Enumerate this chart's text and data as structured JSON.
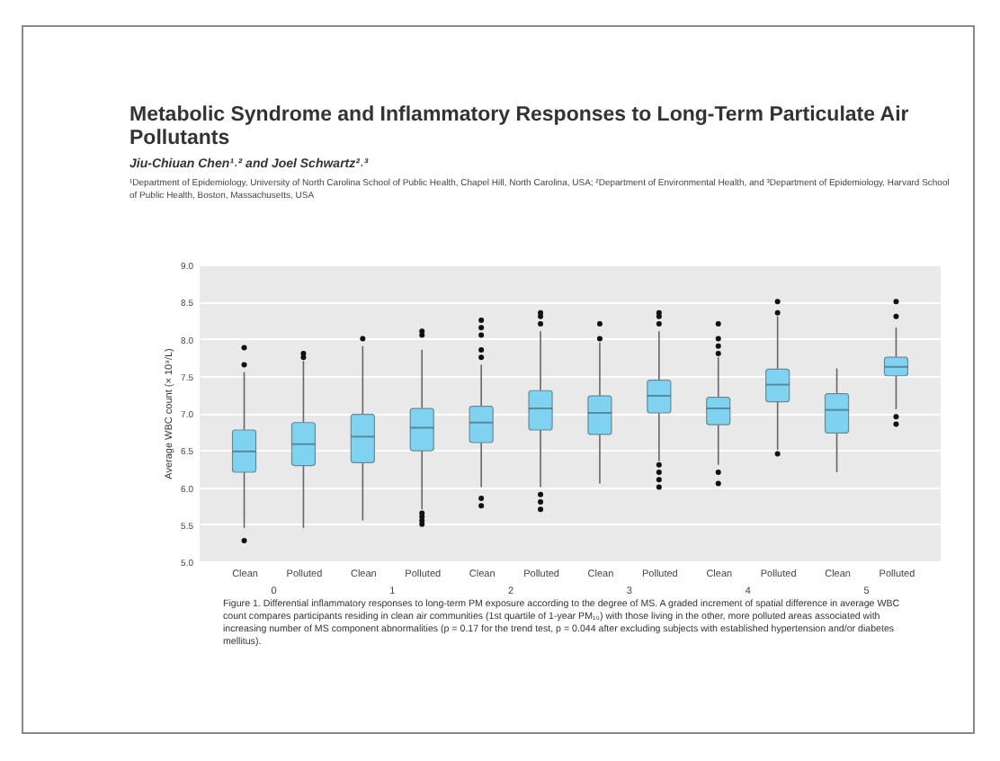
{
  "chart_data": {
    "type": "box",
    "title": "Metabolic Syndrome and Inflammatory Responses to Long-Term Particulate Air Pollutants",
    "subtitle": "Jiu-Chiuan Chen¹˒² and Joel Schwartz²˒³",
    "ylabel": "Average WBC count (× 10⁹/L)",
    "categories": [
      "Clean",
      "Polluted",
      "Clean",
      "Polluted",
      "Clean",
      "Polluted",
      "Clean",
      "Polluted",
      "Clean",
      "Polluted",
      "Clean",
      "Polluted"
    ],
    "boxes": [
      {
        "low": 5.45,
        "q1": 6.2,
        "median": 6.48,
        "q3": 6.77,
        "high": 7.55,
        "outliers": [
          7.65,
          7.88,
          5.28
        ]
      },
      {
        "low": 5.45,
        "q1": 6.29,
        "median": 6.58,
        "q3": 6.87,
        "high": 7.7,
        "outliers": [
          7.75,
          7.8
        ]
      },
      {
        "low": 5.55,
        "q1": 6.33,
        "median": 6.68,
        "q3": 6.98,
        "high": 7.9,
        "outliers": [
          8.0
        ]
      },
      {
        "low": 5.7,
        "q1": 6.49,
        "median": 6.8,
        "q3": 7.06,
        "high": 7.85,
        "outliers": [
          8.05,
          8.1,
          5.5,
          5.55,
          5.6,
          5.65
        ]
      },
      {
        "low": 6.0,
        "q1": 6.6,
        "median": 6.87,
        "q3": 7.09,
        "high": 7.65,
        "outliers": [
          7.75,
          7.85,
          8.05,
          8.15,
          8.25,
          5.75,
          5.85
        ]
      },
      {
        "low": 6.0,
        "q1": 6.77,
        "median": 7.06,
        "q3": 7.3,
        "high": 8.1,
        "outliers": [
          8.2,
          8.3,
          8.35,
          5.9,
          5.8,
          5.7
        ]
      },
      {
        "low": 6.05,
        "q1": 6.71,
        "median": 7.0,
        "q3": 7.23,
        "high": 7.95,
        "outliers": [
          8.0,
          8.2
        ]
      },
      {
        "low": 6.35,
        "q1": 7.0,
        "median": 7.23,
        "q3": 7.44,
        "high": 8.1,
        "outliers": [
          8.2,
          8.3,
          8.35,
          6.0,
          6.1,
          6.2,
          6.3
        ]
      },
      {
        "low": 6.3,
        "q1": 6.84,
        "median": 7.06,
        "q3": 7.21,
        "high": 7.75,
        "outliers": [
          7.8,
          7.9,
          8.0,
          8.2,
          6.2,
          6.05
        ]
      },
      {
        "low": 6.5,
        "q1": 7.15,
        "median": 7.38,
        "q3": 7.59,
        "high": 8.3,
        "outliers": [
          8.35,
          8.5,
          6.45
        ]
      },
      {
        "low": 6.2,
        "q1": 6.73,
        "median": 7.04,
        "q3": 7.26,
        "high": 7.6
      },
      {
        "low": 7.05,
        "q1": 7.5,
        "median": 7.62,
        "q3": 7.75,
        "high": 8.15,
        "outliers": [
          8.3,
          8.5,
          6.85,
          6.95
        ]
      }
    ],
    "colors": [
      "#7fd3f0",
      "#7fd3f0",
      "#7fd3f0",
      "#7fd3f0",
      "#7fd3f0",
      "#7fd3f0",
      "#7fd3f0",
      "#7fd3f0",
      "#7fd3f0",
      "#7fd3f0",
      "#7fd3f0",
      "#7fd3f0"
    ],
    "ylim": [
      5.0,
      9.0
    ],
    "yticks": [
      {
        "value": 5,
        "label": "5.0"
      },
      5.5,
      {
        "value": 6,
        "label": "6.0"
      },
      6.5,
      {
        "value": 7,
        "label": "7.0"
      },
      7.5,
      {
        "value": 8,
        "label": "8.0"
      },
      8.5,
      {
        "value": 9,
        "label": "9.0"
      }
    ],
    "grid": "y",
    "annotations": [
      "¹Department of Epidemiology, University of North Carolina School of Public Health, Chapel Hill, North Carolina, USA; ²Department of Environmental Health, and ³Department of Epidemiology, Harvard School of Public Health, Boston, Massachusetts, USA",
      "Figure 1. Differential inflammatory responses to long-term PM exposure according to the degree of MS. A graded increment of spatial difference in average WBC count compares participants residing in clean air communities (1st quartile of 1-year PM₁₀) with those living in the other, more polluted areas associated with increasing number of MS component abnormalities (p = 0.17 for the trend test, p = 0.044 after excluding subjects with established hypertension and/or diabetes mellitus).",
      "0",
      "1",
      "2",
      "3",
      "4",
      "5"
    ]
  }
}
